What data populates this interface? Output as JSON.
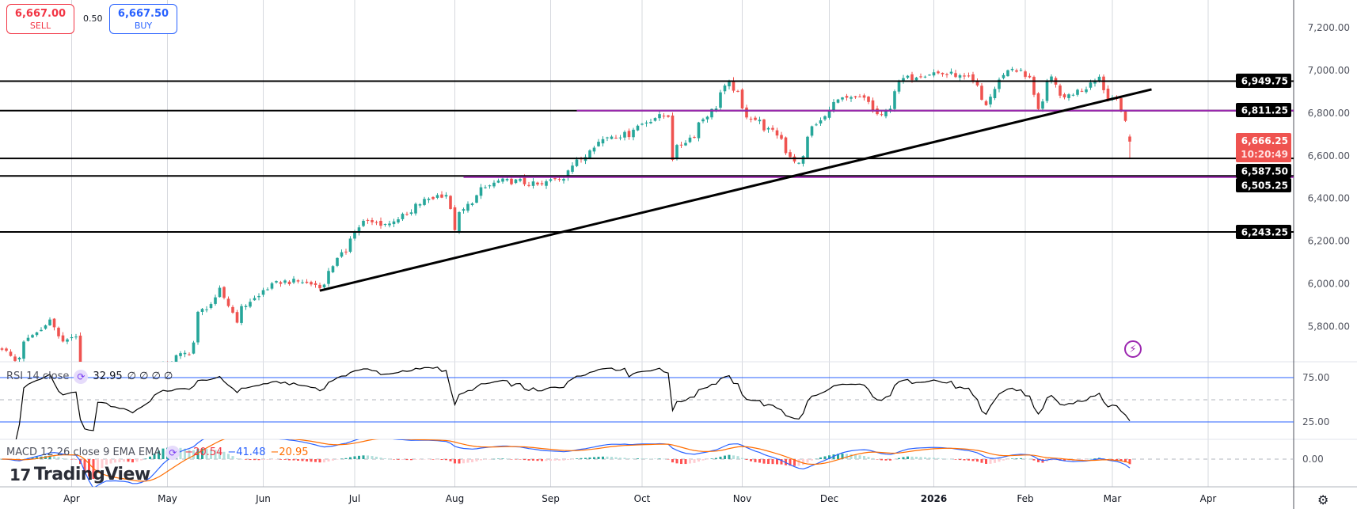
{
  "quote": {
    "sell_price": "6,667.00",
    "sell_label": "SELL",
    "spread": "0.50",
    "buy_price": "6,667.50",
    "buy_label": "BUY"
  },
  "colors": {
    "up": "#26a69a",
    "down": "#ef5350",
    "level_black": "#000000",
    "level_purple": "#9c27b0",
    "rsi_line": "#000000",
    "rsi_band": "#2962ff",
    "macd_line": "#2962ff",
    "signal_line": "#ff6d00",
    "price_label": "#ef5350"
  },
  "indicators": {
    "rsi": {
      "label": "RSI 14 close",
      "value": "32.95",
      "extra": "∅ ∅ ∅ ∅",
      "upper": 75,
      "middle": 50,
      "lower": 25,
      "icon": "refresh-icon"
    },
    "macd": {
      "label": "MACD 12 26 close 9 EMA EMA",
      "hist": "−20.54",
      "macd": "−41.48",
      "signal": "−20.95",
      "icon": "refresh-icon"
    }
  },
  "branding": {
    "logo": "TradingView"
  },
  "chart_data": {
    "type": "candlestick",
    "price_axis_ticks": [
      "7,200.00",
      "7,000.00",
      "6,800.00",
      "6,600.00",
      "6,400.00",
      "6,200.00",
      "6,000.00",
      "5,800.00"
    ],
    "price_axis_values": [
      7200,
      7000,
      6800,
      6600,
      6400,
      6200,
      6000,
      5800
    ],
    "rsi_axis_ticks": [
      "75.00",
      "25.00"
    ],
    "macd_axis_ticks": [
      "0.00"
    ],
    "time_axis": [
      {
        "date": "2025-04-01",
        "label": "Apr"
      },
      {
        "date": "2025-05-01",
        "label": "May"
      },
      {
        "date": "2025-06-02",
        "label": "Jun"
      },
      {
        "date": "2025-07-01",
        "label": "Jul"
      },
      {
        "date": "2025-08-01",
        "label": "Aug"
      },
      {
        "date": "2025-09-02",
        "label": "Sep"
      },
      {
        "date": "2025-10-01",
        "label": "Oct"
      },
      {
        "date": "2025-11-03",
        "label": "Nov"
      },
      {
        "date": "2025-12-01",
        "label": "Dec"
      },
      {
        "date": "2026-01-02",
        "label": "2026",
        "bold": true
      },
      {
        "date": "2026-02-02",
        "label": "Feb"
      },
      {
        "date": "2026-03-02",
        "label": "Mar"
      },
      {
        "date": "2026-04-01",
        "label": "Apr"
      }
    ],
    "close_path": [
      [
        "2025-03-10",
        5700
      ],
      [
        "2025-03-13",
        5640
      ],
      [
        "2025-03-19",
        5760
      ],
      [
        "2025-03-25",
        5830
      ],
      [
        "2025-03-28",
        5720
      ],
      [
        "2025-04-02",
        5760
      ],
      [
        "2025-04-04",
        5100
      ],
      [
        "2025-04-08",
        5000
      ],
      [
        "2025-04-09",
        5500
      ],
      [
        "2025-04-21",
        5200
      ],
      [
        "2025-04-30",
        5620
      ],
      [
        "2025-05-08",
        5680
      ],
      [
        "2025-05-12",
        5860
      ],
      [
        "2025-05-19",
        5970
      ],
      [
        "2025-05-23",
        5830
      ],
      [
        "2025-05-28",
        5920
      ],
      [
        "2025-06-06",
        6010
      ],
      [
        "2025-06-13",
        6010
      ],
      [
        "2025-06-20",
        5990
      ],
      [
        "2025-06-24",
        6090
      ],
      [
        "2025-07-03",
        6290
      ],
      [
        "2025-07-11",
        6280
      ],
      [
        "2025-07-18",
        6330
      ],
      [
        "2025-07-24",
        6400
      ],
      [
        "2025-07-30",
        6420
      ],
      [
        "2025-08-01",
        6260
      ],
      [
        "2025-08-08",
        6410
      ],
      [
        "2025-08-15",
        6480
      ],
      [
        "2025-08-22",
        6480
      ],
      [
        "2025-08-29",
        6460
      ],
      [
        "2025-09-05",
        6500
      ],
      [
        "2025-09-12",
        6600
      ],
      [
        "2025-09-19",
        6690
      ],
      [
        "2025-09-26",
        6700
      ],
      [
        "2025-10-03",
        6770
      ],
      [
        "2025-10-09",
        6790
      ],
      [
        "2025-10-10",
        6590
      ],
      [
        "2025-10-17",
        6700
      ],
      [
        "2025-10-24",
        6830
      ],
      [
        "2025-10-29",
        6940
      ],
      [
        "2025-11-04",
        6790
      ],
      [
        "2025-11-07",
        6760
      ],
      [
        "2025-11-13",
        6700
      ],
      [
        "2025-11-20",
        6560
      ],
      [
        "2025-11-25",
        6730
      ],
      [
        "2025-12-03",
        6860
      ],
      [
        "2025-12-11",
        6870
      ],
      [
        "2025-12-17",
        6780
      ],
      [
        "2025-12-24",
        6960
      ],
      [
        "2026-01-02",
        6990
      ],
      [
        "2026-01-09",
        6980
      ],
      [
        "2026-01-14",
        6960
      ],
      [
        "2026-01-20",
        6840
      ],
      [
        "2026-01-23",
        6950
      ],
      [
        "2026-01-28",
        7010
      ],
      [
        "2026-02-03",
        6960
      ],
      [
        "2026-02-05",
        6825
      ],
      [
        "2026-02-10",
        6960
      ],
      [
        "2026-02-13",
        6860
      ],
      [
        "2026-02-20",
        6920
      ],
      [
        "2026-02-25",
        6970
      ],
      [
        "2026-02-27",
        6860
      ],
      [
        "2026-03-03",
        6880
      ],
      [
        "2026-03-05",
        6750
      ],
      [
        "2026-03-06",
        6666.25
      ]
    ],
    "last_candle": {
      "open": 6690,
      "high": 6700,
      "low": 6590,
      "close": 6666.25
    },
    "levels": [
      {
        "price": 6949.75,
        "label": "6,949.75",
        "color": "#000000"
      },
      {
        "price": 6811.25,
        "label": "6,811.25",
        "color": "#000000",
        "purple_from": "2025-09-10"
      },
      {
        "price": 6587.5,
        "label": "6,587.50",
        "color": "#000000"
      },
      {
        "price": 6505.25,
        "label": "6,505.25",
        "color": "#000000",
        "purple_from": "2025-08-05"
      },
      {
        "price": 6243.25,
        "label": "6,243.25",
        "color": "#000000"
      }
    ],
    "trendline": {
      "start": [
        "2025-06-19",
        5968
      ],
      "end": [
        "2026-03-13",
        6911
      ]
    },
    "last_price": {
      "value": "6,666.25",
      "countdown": "10:20:49"
    }
  }
}
